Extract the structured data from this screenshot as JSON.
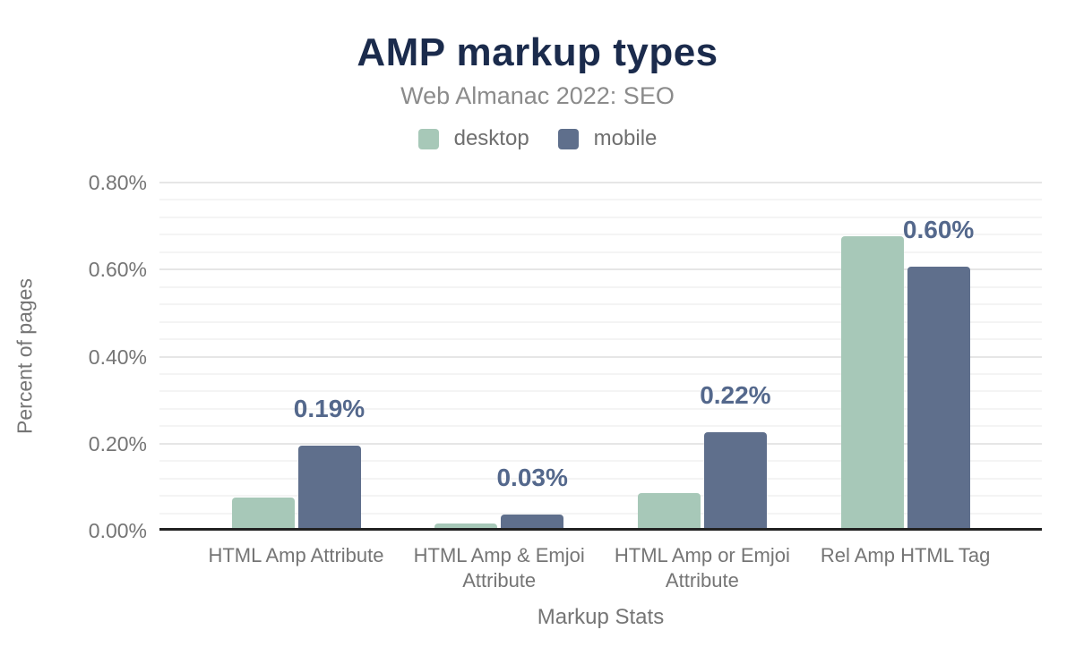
{
  "title": "AMP markup types",
  "subtitle": "Web Almanac 2022: SEO",
  "legend": {
    "items": [
      {
        "label": "desktop",
        "color": "#a7c8b8"
      },
      {
        "label": "mobile",
        "color": "#5f6f8c"
      }
    ]
  },
  "chart_data": {
    "type": "bar",
    "title": "AMP markup types",
    "subtitle": "Web Almanac 2022: SEO",
    "categories": [
      "HTML Amp Attribute",
      "HTML Amp & Emjoi Attribute",
      "HTML Amp or Emjoi Attribute",
      "Rel Amp HTML Tag"
    ],
    "series": [
      {
        "name": "desktop",
        "color": "#a7c8b8",
        "values": [
          0.07,
          0.01,
          0.08,
          0.67
        ],
        "labels": null
      },
      {
        "name": "mobile",
        "color": "#5f6f8c",
        "values": [
          0.19,
          0.03,
          0.22,
          0.6
        ],
        "labels": [
          "0.19%",
          "0.03%",
          "0.22%",
          "0.60%"
        ]
      }
    ],
    "xlabel": "Markup Stats",
    "ylabel": "Percent of pages",
    "ylim": [
      0,
      0.8
    ],
    "yticks": [
      {
        "value": 0.0,
        "label": "0.00%"
      },
      {
        "value": 0.2,
        "label": "0.20%"
      },
      {
        "value": 0.4,
        "label": "0.40%"
      },
      {
        "value": 0.6,
        "label": "0.60%"
      },
      {
        "value": 0.8,
        "label": "0.80%"
      }
    ],
    "minor_tick_step": 0.04,
    "grid": "horizontal",
    "legend_position": "top"
  },
  "colors": {
    "title": "#1b2b4c",
    "subtitle": "#8b8b8b",
    "axis_text": "#757575",
    "legend_text": "#6f6f6f",
    "data_label": "#54688c",
    "baseline": "#222222",
    "grid_major": "#e6e6e6",
    "grid_minor": "#f4f4f4",
    "background": "#ffffff"
  }
}
